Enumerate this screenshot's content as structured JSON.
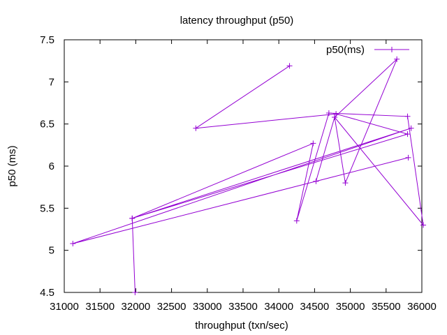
{
  "chart_data": {
    "type": "line",
    "title": "latency throughput (p50)",
    "xlabel": "throughput (txn/sec)",
    "ylabel": "p50 (ms)",
    "xlim": [
      31000,
      36000
    ],
    "ylim": [
      4.5,
      7.5
    ],
    "xticks": [
      31000,
      31500,
      32000,
      32500,
      33000,
      33500,
      34000,
      34500,
      35000,
      35500,
      36000
    ],
    "xtick_labels": [
      "31000",
      "31500",
      "32000",
      "32500",
      "33000",
      "33500",
      "34000",
      "34500",
      "35000",
      "35500",
      "36000"
    ],
    "yticks": [
      4.5,
      5,
      5.5,
      6,
      6.5,
      7,
      7.5
    ],
    "ytick_labels": [
      "4.5",
      "5",
      "5.5",
      "6",
      "6.5",
      "7",
      "7.5"
    ],
    "grid": false,
    "legend_position": "top-right",
    "series": [
      {
        "name": "p50(ms)",
        "color": "#9400d3",
        "marker": "plus",
        "points": [
          [
            31990,
            4.5
          ],
          [
            31950,
            5.38
          ],
          [
            34480,
            6.27
          ],
          [
            34250,
            5.35
          ],
          [
            34700,
            6.63
          ],
          [
            35800,
            6.59
          ],
          [
            36020,
            5.3
          ],
          [
            34780,
            6.58
          ],
          [
            34930,
            5.8
          ],
          [
            35650,
            7.27
          ],
          [
            34780,
            6.58
          ],
          [
            34520,
            5.82
          ],
          [
            35810,
            6.1
          ],
          [
            31120,
            5.08
          ],
          [
            35850,
            6.45
          ],
          [
            31950,
            5.38
          ],
          [
            35800,
            6.38
          ],
          [
            34800,
            6.62
          ],
          [
            32840,
            6.45
          ],
          [
            34150,
            7.19
          ]
        ]
      }
    ]
  }
}
